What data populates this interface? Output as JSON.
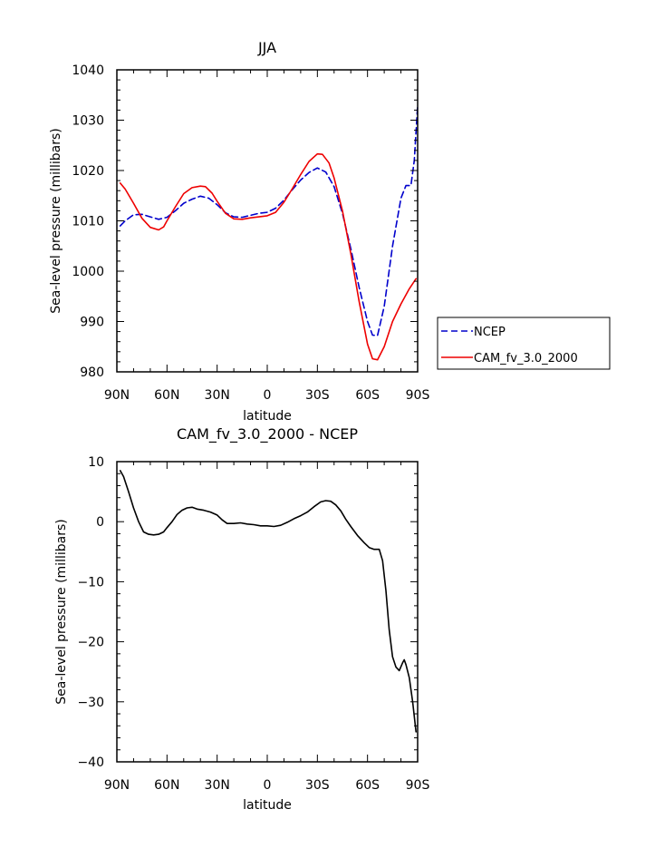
{
  "chart_data": [
    {
      "type": "line",
      "title": "JJA",
      "xlabel": "latitude",
      "ylabel": "Sea-level pressure (millibars)",
      "xlim": [
        -90,
        90
      ],
      "ylim": [
        980,
        1040
      ],
      "x_tick_values": [
        -90,
        -60,
        -30,
        0,
        30,
        60,
        90
      ],
      "x_tick_labels": [
        "90N",
        "60N",
        "30N",
        "0",
        "30S",
        "60S",
        "90S"
      ],
      "y_tick_values": [
        980,
        990,
        1000,
        1010,
        1020,
        1030,
        1040
      ],
      "y_tick_labels": [
        "980",
        "990",
        "1000",
        "1010",
        "1020",
        "1030",
        "1040"
      ],
      "legend": {
        "position": "right",
        "entries": [
          "NCEP",
          "CAM_fv_3.0_2000"
        ]
      },
      "series": [
        {
          "name": "NCEP",
          "color": "#0000cc",
          "style": "dashed",
          "points": [
            [
              -88,
              1009
            ],
            [
              -85,
              1010
            ],
            [
              -80,
              1011.2
            ],
            [
              -75,
              1011.3
            ],
            [
              -70,
              1010.8
            ],
            [
              -65,
              1010.3
            ],
            [
              -60,
              1010.7
            ],
            [
              -55,
              1012
            ],
            [
              -50,
              1013.5
            ],
            [
              -45,
              1014.3
            ],
            [
              -40,
              1014.9
            ],
            [
              -35,
              1014.5
            ],
            [
              -30,
              1013.2
            ],
            [
              -25,
              1011.6
            ],
            [
              -20,
              1010.8
            ],
            [
              -15,
              1010.7
            ],
            [
              -10,
              1011.1
            ],
            [
              -5,
              1011.5
            ],
            [
              0,
              1011.7
            ],
            [
              5,
              1012.5
            ],
            [
              10,
              1014.1
            ],
            [
              15,
              1016.2
            ],
            [
              20,
              1018.1
            ],
            [
              25,
              1019.6
            ],
            [
              30,
              1020.5
            ],
            [
              35,
              1019.7
            ],
            [
              40,
              1016.8
            ],
            [
              45,
              1011.5
            ],
            [
              50,
              1004.5
            ],
            [
              55,
              996.8
            ],
            [
              60,
              990
            ],
            [
              63,
              987.3
            ],
            [
              66,
              987.2
            ],
            [
              70,
              993
            ],
            [
              75,
              1005
            ],
            [
              80,
              1014.5
            ],
            [
              83,
              1017
            ],
            [
              86,
              1017
            ],
            [
              88,
              1022
            ],
            [
              90,
              1033
            ]
          ]
        },
        {
          "name": "CAM_fv_3.0_2000",
          "color": "#ee0000",
          "style": "solid",
          "points": [
            [
              -88,
              1017.5
            ],
            [
              -85,
              1016.3
            ],
            [
              -80,
              1013.5
            ],
            [
              -75,
              1010.5
            ],
            [
              -70,
              1008.7
            ],
            [
              -65,
              1008.2
            ],
            [
              -62,
              1008.8
            ],
            [
              -60,
              1010
            ],
            [
              -55,
              1012.8
            ],
            [
              -50,
              1015.4
            ],
            [
              -45,
              1016.6
            ],
            [
              -40,
              1016.9
            ],
            [
              -37,
              1016.8
            ],
            [
              -33,
              1015.5
            ],
            [
              -30,
              1013.9
            ],
            [
              -25,
              1011.5
            ],
            [
              -20,
              1010.4
            ],
            [
              -15,
              1010.3
            ],
            [
              -10,
              1010.6
            ],
            [
              -5,
              1010.8
            ],
            [
              0,
              1011
            ],
            [
              5,
              1011.7
            ],
            [
              10,
              1013.7
            ],
            [
              15,
              1016.4
            ],
            [
              20,
              1019.2
            ],
            [
              25,
              1021.8
            ],
            [
              30,
              1023.3
            ],
            [
              33,
              1023.2
            ],
            [
              37,
              1021.5
            ],
            [
              40,
              1018.5
            ],
            [
              45,
              1012
            ],
            [
              50,
              1003.5
            ],
            [
              55,
              994
            ],
            [
              60,
              985.5
            ],
            [
              63,
              982.6
            ],
            [
              66,
              982.4
            ],
            [
              70,
              985
            ],
            [
              75,
              990
            ],
            [
              80,
              993.5
            ],
            [
              85,
              996.5
            ],
            [
              89,
              998.5
            ]
          ]
        }
      ]
    },
    {
      "type": "line",
      "title": "CAM_fv_3.0_2000 - NCEP",
      "xlabel": "latitude",
      "ylabel": "Sea-level pressure (millibars)",
      "xlim": [
        -90,
        90
      ],
      "ylim": [
        -40,
        10
      ],
      "x_tick_values": [
        -90,
        -60,
        -30,
        0,
        30,
        60,
        90
      ],
      "x_tick_labels": [
        "90N",
        "60N",
        "30N",
        "0",
        "30S",
        "60S",
        "90S"
      ],
      "y_tick_values": [
        -40,
        -30,
        -20,
        -10,
        0,
        10
      ],
      "y_tick_labels": [
        "−40",
        "−30",
        "−20",
        "−10",
        "0",
        "10"
      ],
      "series": [
        {
          "name": "CAM_fv_3.0_2000 - NCEP",
          "color": "#000000",
          "style": "solid",
          "points": [
            [
              -88,
              8.5
            ],
            [
              -86,
              7.5
            ],
            [
              -83,
              5
            ],
            [
              -80,
              2.3
            ],
            [
              -77,
              0
            ],
            [
              -74,
              -1.7
            ],
            [
              -71,
              -2.1
            ],
            [
              -68,
              -2.2
            ],
            [
              -65,
              -2.1
            ],
            [
              -62,
              -1.7
            ],
            [
              -60,
              -1
            ],
            [
              -57,
              0
            ],
            [
              -54,
              1.2
            ],
            [
              -51,
              1.9
            ],
            [
              -48,
              2.3
            ],
            [
              -45,
              2.4
            ],
            [
              -42,
              2.1
            ],
            [
              -38,
              1.9
            ],
            [
              -34,
              1.6
            ],
            [
              -30,
              1.1
            ],
            [
              -27,
              0.3
            ],
            [
              -24,
              -0.3
            ],
            [
              -20,
              -0.3
            ],
            [
              -16,
              -0.2
            ],
            [
              -12,
              -0.4
            ],
            [
              -8,
              -0.5
            ],
            [
              -4,
              -0.7
            ],
            [
              0,
              -0.7
            ],
            [
              4,
              -0.8
            ],
            [
              8,
              -0.6
            ],
            [
              12,
              -0.1
            ],
            [
              16,
              0.5
            ],
            [
              20,
              1
            ],
            [
              24,
              1.6
            ],
            [
              28,
              2.5
            ],
            [
              32,
              3.3
            ],
            [
              35,
              3.5
            ],
            [
              38,
              3.4
            ],
            [
              41,
              2.8
            ],
            [
              44,
              1.8
            ],
            [
              47,
              0.4
            ],
            [
              50,
              -0.8
            ],
            [
              54,
              -2.3
            ],
            [
              58,
              -3.5
            ],
            [
              61,
              -4.3
            ],
            [
              64,
              -4.6
            ],
            [
              67,
              -4.6
            ],
            [
              69,
              -6.5
            ],
            [
              71,
              -11.5
            ],
            [
              73,
              -18
            ],
            [
              75,
              -22.5
            ],
            [
              77,
              -24.2
            ],
            [
              79,
              -24.8
            ],
            [
              81,
              -23.5
            ],
            [
              82,
              -23
            ],
            [
              83,
              -23.8
            ],
            [
              85,
              -26
            ],
            [
              87,
              -30
            ],
            [
              89,
              -35
            ]
          ]
        }
      ]
    }
  ]
}
